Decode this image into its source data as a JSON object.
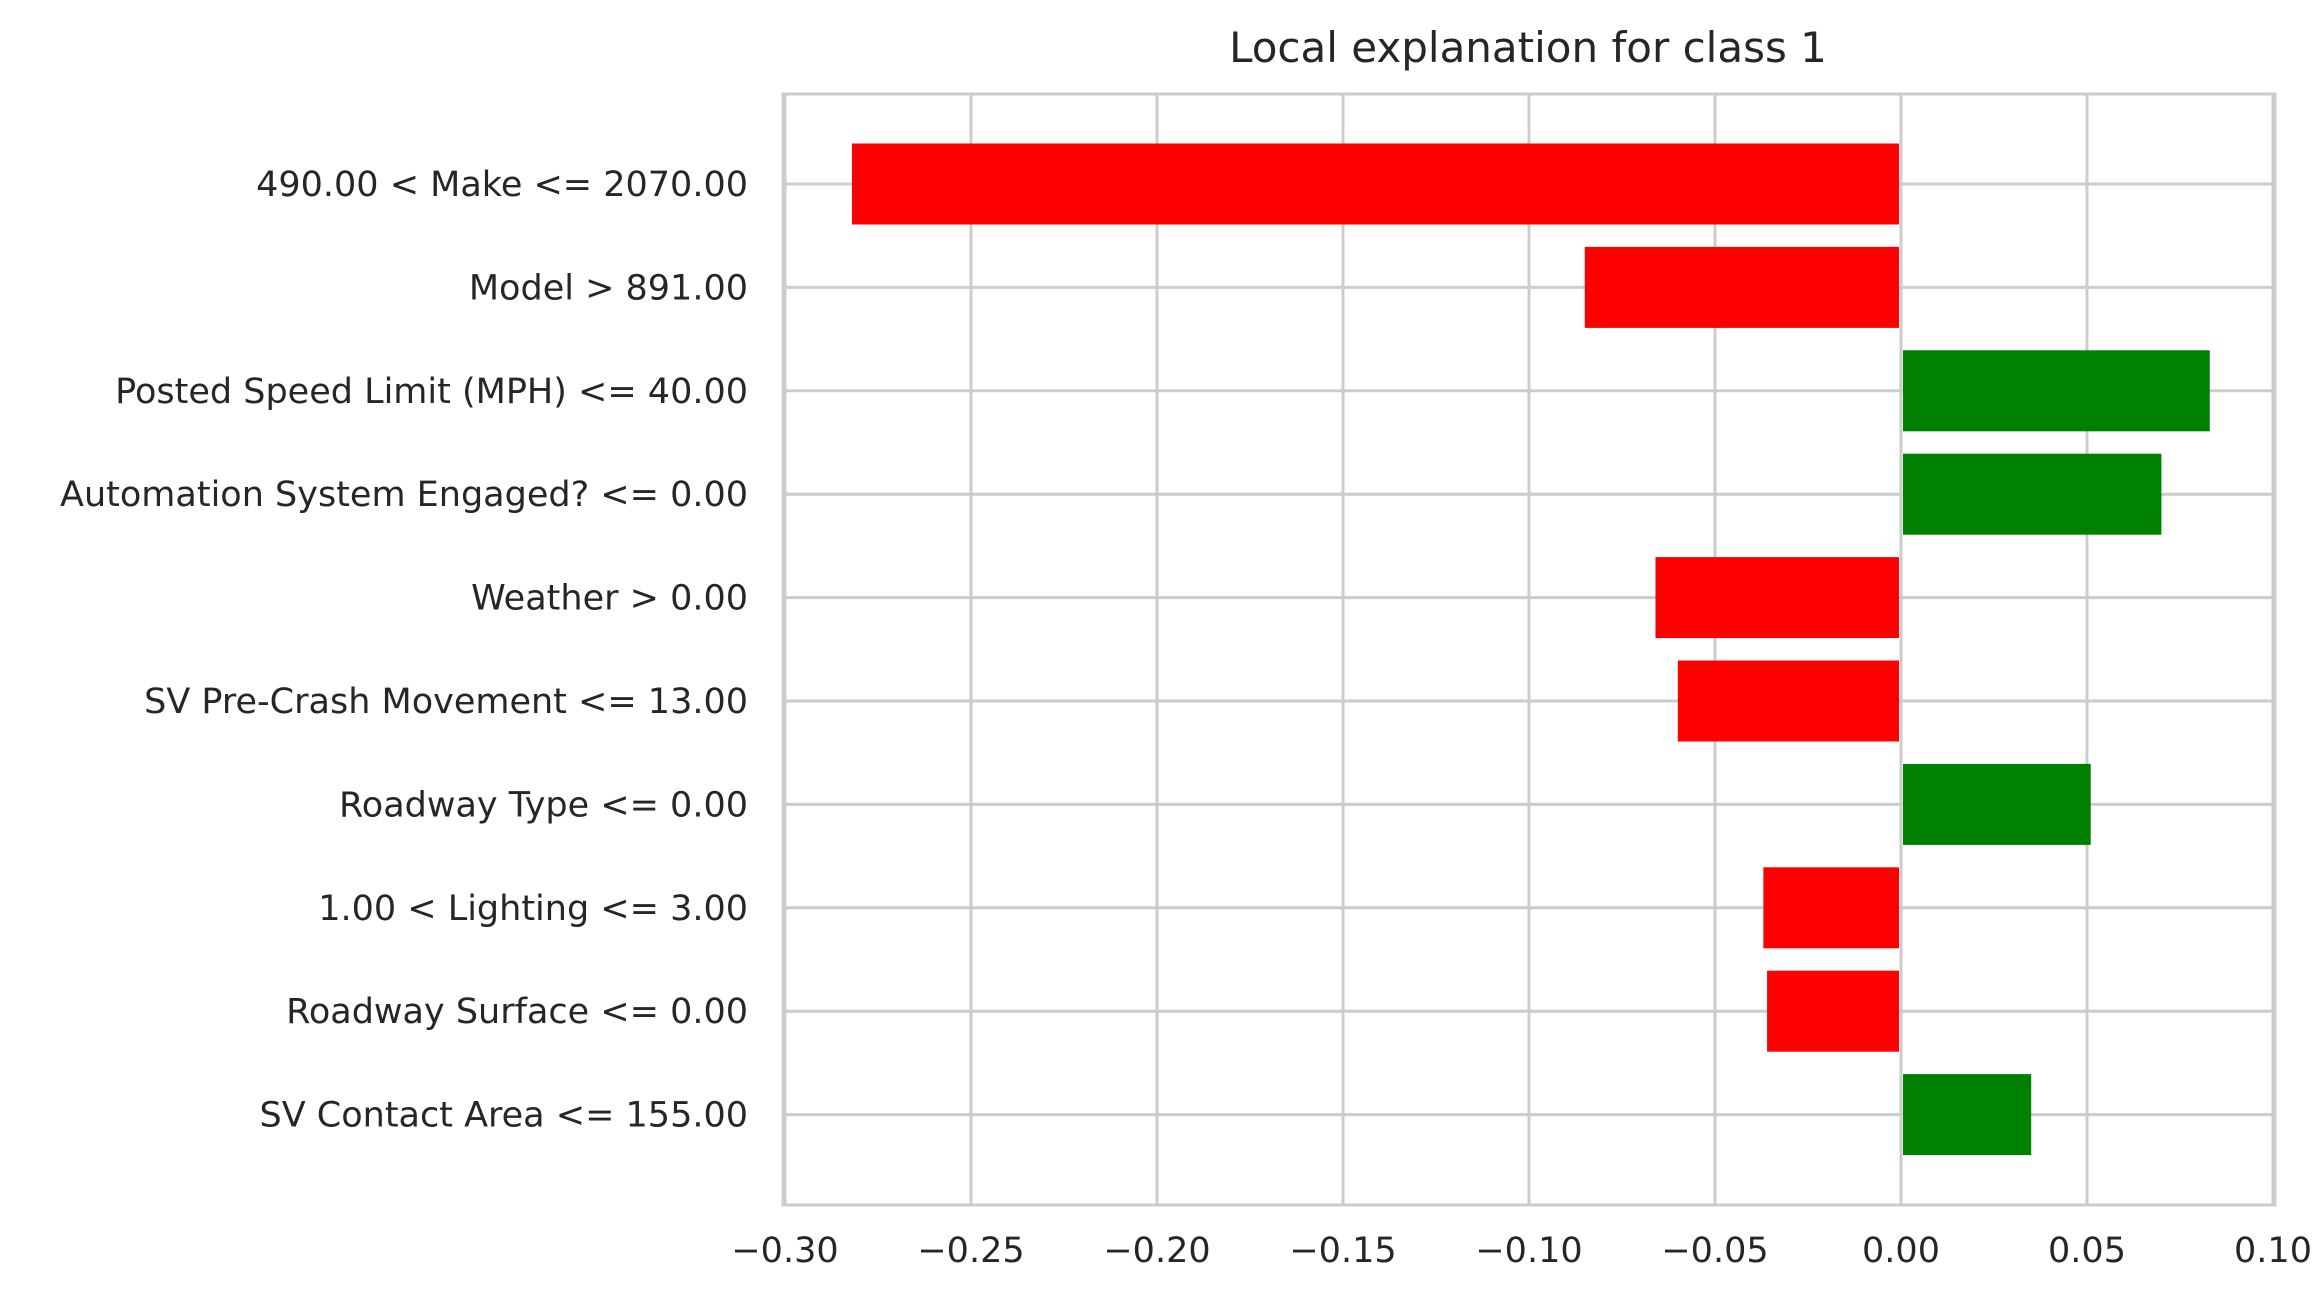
{
  "chart_data": {
    "type": "bar",
    "orientation": "horizontal",
    "title": "Local explanation for class 1",
    "xlabel": "",
    "ylabel": "",
    "xlim": [
      -0.3,
      0.1
    ],
    "xticks": [
      -0.3,
      -0.25,
      -0.2,
      -0.15,
      -0.1,
      -0.05,
      0.0,
      0.05,
      0.1
    ],
    "xtick_labels": [
      "−0.30",
      "−0.25",
      "−0.20",
      "−0.15",
      "−0.10",
      "−0.05",
      "0.00",
      "0.05",
      "0.10"
    ],
    "grid": true,
    "legend": "none",
    "positive_color": "#008000",
    "negative_color": "#ff0000",
    "categories": [
      "490.00 < Make <= 2070.00",
      "Model > 891.00",
      "Posted Speed Limit (MPH) <= 40.00",
      "Automation System Engaged? <= 0.00",
      "Weather > 0.00",
      "SV Pre-Crash Movement <= 13.00",
      "Roadway Type <= 0.00",
      "1.00 < Lighting <= 3.00",
      "Roadway Surface <= 0.00",
      "SV Contact Area <= 155.00"
    ],
    "values": [
      -0.282,
      -0.085,
      0.083,
      0.07,
      -0.066,
      -0.06,
      0.051,
      -0.037,
      -0.036,
      0.035
    ]
  }
}
